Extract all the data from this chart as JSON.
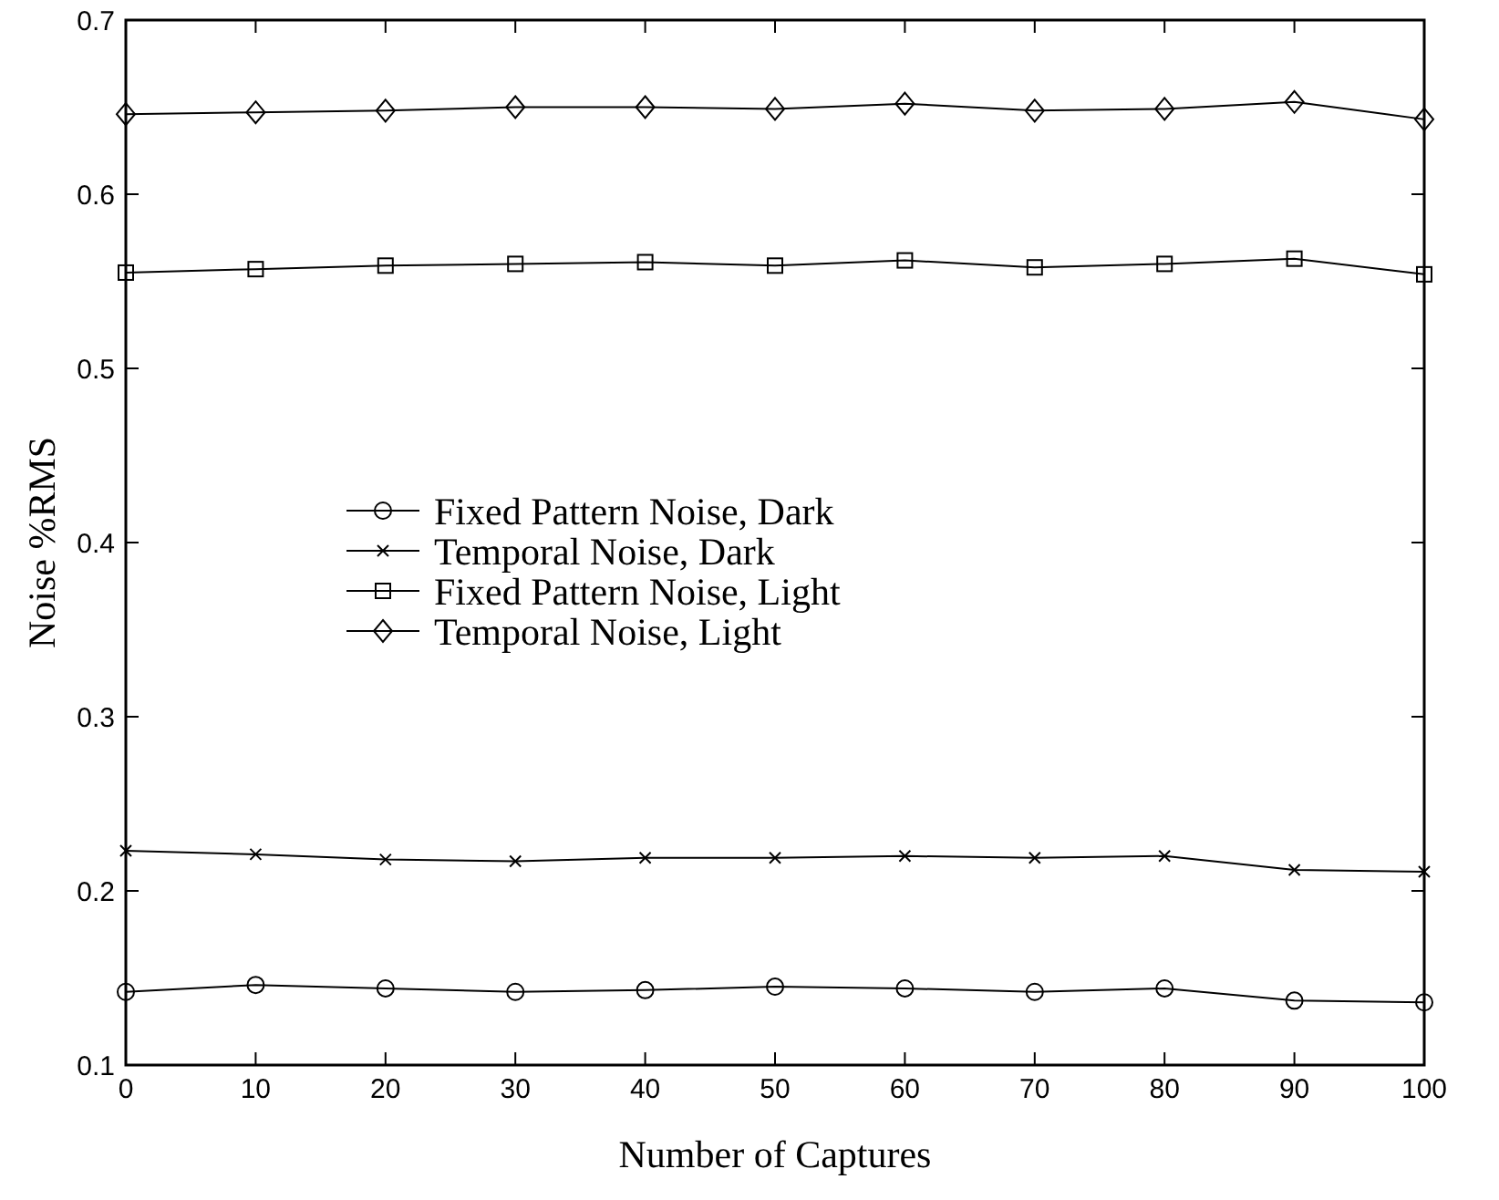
{
  "chart_data": {
    "type": "line",
    "xlabel": "Number of Captures",
    "ylabel": "Noise %RMS",
    "x": [
      0,
      10,
      20,
      30,
      40,
      50,
      60,
      70,
      80,
      90,
      100
    ],
    "xlim": [
      0,
      100
    ],
    "xticks": [
      0,
      10,
      20,
      30,
      40,
      50,
      60,
      70,
      80,
      90,
      100
    ],
    "ylim": [
      0.1,
      0.7
    ],
    "yticks": [
      0.1,
      0.2,
      0.3,
      0.4,
      0.5,
      0.6,
      0.7
    ],
    "grid": false,
    "legend": "center left",
    "line_style": "solid",
    "series": [
      {
        "name": "Fixed Pattern Noise, Dark",
        "color": "#000000",
        "marker": "circle",
        "values": [
          0.142,
          0.146,
          0.144,
          0.142,
          0.143,
          0.145,
          0.144,
          0.142,
          0.144,
          0.137,
          0.136
        ]
      },
      {
        "name": "Temporal Noise, Dark",
        "color": "#000000",
        "marker": "cross",
        "values": [
          0.223,
          0.221,
          0.218,
          0.217,
          0.219,
          0.219,
          0.22,
          0.219,
          0.22,
          0.212,
          0.211
        ]
      },
      {
        "name": "Fixed Pattern Noise, Light",
        "color": "#000000",
        "marker": "square",
        "values": [
          0.555,
          0.557,
          0.559,
          0.56,
          0.561,
          0.559,
          0.562,
          0.558,
          0.56,
          0.563,
          0.554
        ]
      },
      {
        "name": "Temporal Noise, Light",
        "color": "#000000",
        "marker": "diamond",
        "values": [
          0.646,
          0.647,
          0.648,
          0.65,
          0.65,
          0.649,
          0.652,
          0.648,
          0.649,
          0.653,
          0.643
        ]
      }
    ]
  }
}
